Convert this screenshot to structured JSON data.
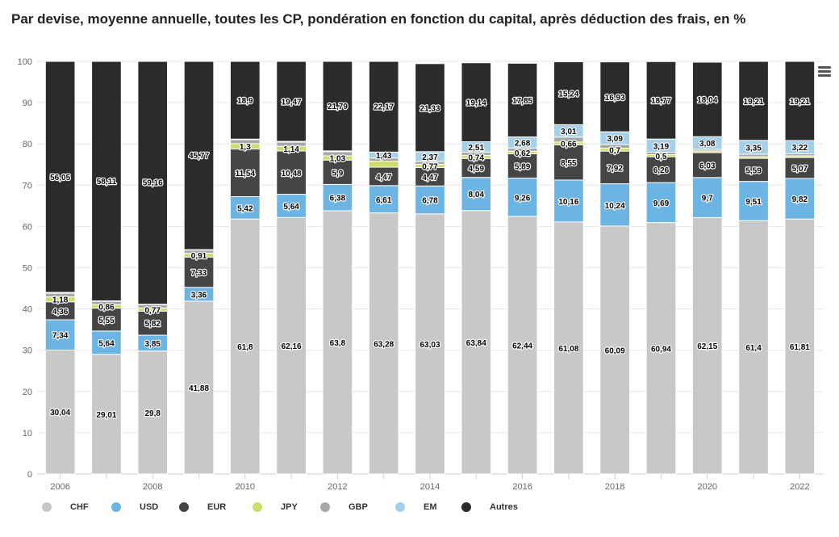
{
  "colors": {
    "CHF": "#c8c8c8",
    "USD": "#6cb4e4",
    "EUR": "#454545",
    "JPY": "#cddc6b",
    "GBP": "#a8a8a8",
    "EM": "#a4d0ea",
    "Autres": "#2b2b2b"
  },
  "chart_data": {
    "type": "bar",
    "stacked": true,
    "title": "Par devise, moyenne annuelle, toutes les CP, pondération en fonction du capital, après déduction des frais, en %",
    "xlabel": "",
    "ylabel": "",
    "ylim": [
      0,
      100
    ],
    "yticks": [
      0,
      10,
      20,
      30,
      40,
      50,
      60,
      70,
      80,
      90,
      100
    ],
    "categories": [
      2006,
      2007,
      2008,
      2009,
      2010,
      2011,
      2012,
      2013,
      2014,
      2015,
      2016,
      2017,
      2018,
      2019,
      2020,
      2021,
      2022
    ],
    "xtick_labels": [
      "2006",
      "2008",
      "2010",
      "2012",
      "2014",
      "2016",
      "2018",
      "2020",
      "2022"
    ],
    "legend_position": "bottom",
    "series": [
      {
        "name": "CHF",
        "values": [
          30.04,
          29.01,
          29.8,
          41.88,
          61.8,
          62.16,
          63.8,
          63.28,
          63.03,
          63.84,
          62.44,
          61.08,
          60.09,
          60.94,
          62.15,
          61.4,
          61.81
        ],
        "labels": [
          "30,04",
          "29,01",
          "29,8",
          "41,88",
          "61,8",
          "62,16",
          "63,8",
          "63,28",
          "63,03",
          "63,84",
          "62,44",
          "61,08",
          "60,09",
          "60,94",
          "62,15",
          "61,4",
          "61,81"
        ]
      },
      {
        "name": "USD",
        "values": [
          7.34,
          5.64,
          3.85,
          3.36,
          5.42,
          5.64,
          6.38,
          6.61,
          6.78,
          8.04,
          9.26,
          10.16,
          10.24,
          9.69,
          9.7,
          9.51,
          9.82
        ],
        "labels": [
          "7,34",
          "5,64",
          "3,85",
          "3,36",
          "5,42",
          "5,64",
          "6,38",
          "6,61",
          "6,78",
          "8,04",
          "9,26",
          "10,16",
          "10,24",
          "9,69",
          "9,7",
          "9,51",
          "9,82"
        ]
      },
      {
        "name": "EUR",
        "values": [
          4.36,
          5.55,
          5.82,
          7.33,
          11.54,
          10.48,
          5.9,
          4.47,
          4.47,
          4.59,
          5.89,
          8.55,
          7.92,
          6.26,
          6.03,
          5.59,
          5.07
        ],
        "labels": [
          "4,36",
          "5,55",
          "5,82",
          "7,33",
          "11,54",
          "10,48",
          "5,9",
          "4,47",
          "4,47",
          "4,59",
          "5,89",
          "8,55",
          "7,92",
          "6,26",
          "6,03",
          "5,59",
          "5,07"
        ]
      },
      {
        "name": "JPY",
        "values": [
          1.18,
          0.86,
          0.77,
          0.91,
          1.3,
          1.14,
          1.03,
          1.43,
          0.77,
          0.74,
          0.62,
          0.66,
          0.7,
          0.5,
          0.4,
          0.4,
          0.4
        ],
        "labels": [
          "1,18",
          "0,86",
          "0,77",
          "0,91",
          "1,3",
          "1,14",
          "1,03",
          "",
          "0,77",
          "0,74",
          "0,62",
          "0,66",
          "0,7",
          "0,5",
          "",
          "",
          ""
        ]
      },
      {
        "name": "GBP",
        "values": [
          0.9,
          0.8,
          0.8,
          0.8,
          1.0,
          1.0,
          1.0,
          0.8,
          0.7,
          0.8,
          0.8,
          1.2,
          0.9,
          0.6,
          0.4,
          0.6,
          0.5
        ],
        "labels": [
          "",
          "",
          "",
          "",
          "",
          "",
          "",
          "",
          "",
          "",
          "",
          "",
          "",
          "",
          "",
          "",
          ""
        ]
      },
      {
        "name": "EM",
        "values": [
          0.2,
          0.1,
          0.1,
          0.1,
          0.1,
          0.2,
          0.2,
          1.43,
          2.37,
          2.51,
          2.68,
          3.01,
          3.09,
          3.19,
          3.08,
          3.35,
          3.22
        ],
        "labels": [
          "",
          "",
          "",
          "",
          "",
          "",
          "",
          "1,43",
          "2,37",
          "2,51",
          "2,68",
          "3,01",
          "3,09",
          "3,19",
          "3,08",
          "3,35",
          "3,22"
        ]
      },
      {
        "name": "Autres",
        "values": [
          56.05,
          58.11,
          59.16,
          45.77,
          18.9,
          19.47,
          21.79,
          22.17,
          21.33,
          19.14,
          17.85,
          15.24,
          16.93,
          18.77,
          18.04,
          19.21,
          19.21
        ],
        "labels": [
          "56,05",
          "58,11",
          "59,16",
          "45,77",
          "18,9",
          "19,47",
          "21,79",
          "22,17",
          "21,33",
          "19,14",
          "17,85",
          "15,24",
          "16,93",
          "18,77",
          "18,04",
          "19,21",
          "19,21"
        ]
      }
    ]
  }
}
